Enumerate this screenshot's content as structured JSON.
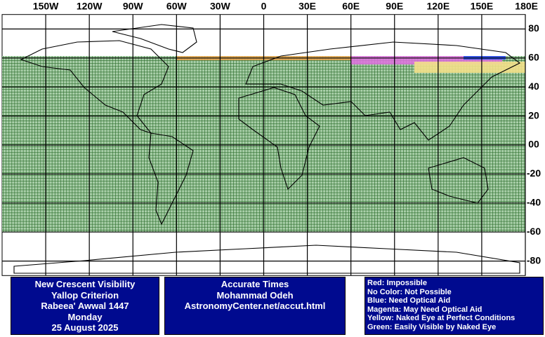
{
  "map": {
    "xticks": [
      {
        "value": -150,
        "label": "150W"
      },
      {
        "value": -120,
        "label": "120W"
      },
      {
        "value": -90,
        "label": "90W"
      },
      {
        "value": -60,
        "label": "60W"
      },
      {
        "value": -30,
        "label": "30W"
      },
      0,
      {
        "value": 30,
        "label": "30E"
      },
      {
        "value": 60,
        "label": "60E"
      },
      {
        "value": 90,
        "label": "90E"
      },
      {
        "value": 120,
        "label": "120E"
      },
      {
        "value": 150,
        "label": "150E"
      },
      {
        "value": 180,
        "label": "180E"
      }
    ],
    "yticks": [
      80,
      60,
      40,
      20,
      {
        "value": 0,
        "label": "00"
      },
      -20,
      -40,
      -60,
      -80
    ]
  },
  "title_box": [
    "New Crescent Visibility",
    "Yallop Criterion",
    "Rabeea' Awwal 1447",
    "Monday",
    "25 August 2025"
  ],
  "credit_box": [
    "Accurate Times",
    "Mohammad Odeh",
    "AstronomyCenter.net/accut.html"
  ],
  "legend_box": [
    "Red: Impossible",
    "No Color: Not Possible",
    "Blue: Need Optical Aid",
    "Magenta: May Need Optical Aid",
    "Yellow: Naked Eye at Perfect Conditions",
    "Green: Easily Visible by Naked Eye"
  ]
}
